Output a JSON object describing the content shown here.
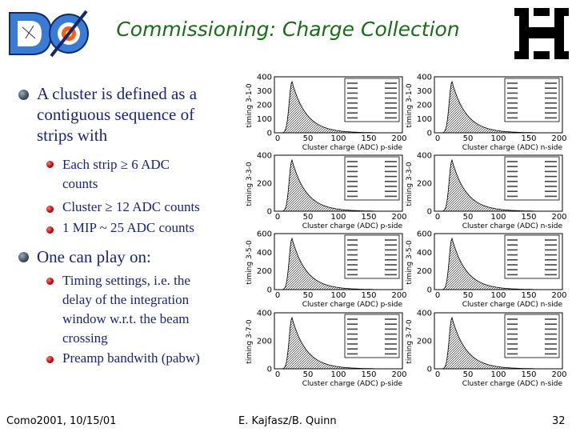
{
  "header": {
    "title": "Commissioning: Charge Collection",
    "logo_left": "DØ",
    "logo_right": "Fermilab"
  },
  "bullets": {
    "b1": "A cluster is defined as a contiguous sequence of strips with",
    "b1_lines": [
      "A cluster is defined as a",
      "contiguous sequence of",
      "strips with"
    ],
    "sub1": [
      "Each strip ≥ 6 ADC",
      "counts"
    ],
    "sub2": "Cluster ≥ 12 ADC counts",
    "sub3": "1 MIP ~ 25 ADC counts",
    "b2": "One can play on:",
    "sub4": [
      "Timing settings, i.e. the",
      "delay of the integration",
      "window w.r.t. the beam",
      "crossing"
    ],
    "sub5": "Preamp bandwith (pabw)"
  },
  "footer": {
    "left": "Como2001, 10/15/01",
    "center": "E. Kajfasz/B. Quinn",
    "right": "32"
  },
  "plots": [
    {
      "ylabel": "timing 3-1-0",
      "xlabel": "Cluster charge (ADC) p-side",
      "yticks": [
        "400",
        "300",
        "200",
        "100",
        "0"
      ],
      "xticks": [
        "0",
        "50",
        "100",
        "150",
        "200"
      ]
    },
    {
      "ylabel": "timing 3-1-0",
      "xlabel": "Cluster charge (ADC) n-side",
      "yticks": [
        "400",
        "300",
        "200",
        "100",
        "0"
      ],
      "xticks": [
        "0",
        "50",
        "100",
        "150",
        "200"
      ]
    },
    {
      "ylabel": "timing 3-3-0",
      "xlabel": "Cluster charge (ADC) p-side",
      "yticks": [
        "400",
        "200",
        "0"
      ],
      "xticks": [
        "0",
        "50",
        "100",
        "150",
        "200"
      ]
    },
    {
      "ylabel": "timing 3-3-0",
      "xlabel": "Cluster charge (ADC) n-side",
      "yticks": [
        "400",
        "200",
        "0"
      ],
      "xticks": [
        "0",
        "50",
        "100",
        "150",
        "200"
      ]
    },
    {
      "ylabel": "timing 3-5-0",
      "xlabel": "Cluster charge (ADC) p-side",
      "yticks": [
        "600",
        "400",
        "200",
        "0"
      ],
      "xticks": [
        "0",
        "50",
        "100",
        "150",
        "200"
      ]
    },
    {
      "ylabel": "timing 3-5-0",
      "xlabel": "Cluster charge (ADC) n-side",
      "yticks": [
        "600",
        "400",
        "200",
        "0"
      ],
      "xticks": [
        "0",
        "50",
        "100",
        "150",
        "200"
      ]
    },
    {
      "ylabel": "timing 3-7-0",
      "xlabel": "Cluster charge (ADC) p-side",
      "yticks": [
        "400",
        "200",
        "0"
      ],
      "xticks": [
        "0",
        "50",
        "100",
        "150",
        "200"
      ]
    },
    {
      "ylabel": "timing 3-7-0",
      "xlabel": "Cluster charge (ADC) n-side",
      "yticks": [
        "400",
        "200",
        "0"
      ],
      "xticks": [
        "0",
        "50",
        "100",
        "150",
        "200"
      ]
    }
  ]
}
